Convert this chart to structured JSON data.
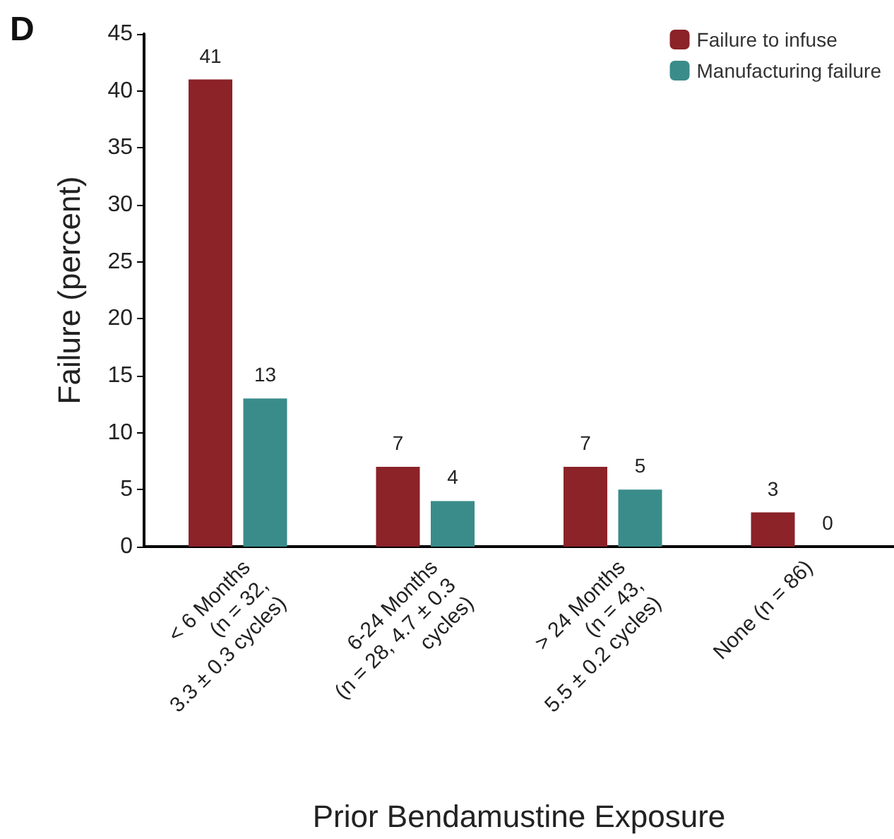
{
  "chart_data": {
    "type": "bar",
    "title": "D",
    "xlabel": "Prior Bendamustine Exposure",
    "ylabel": "Failure (percent)",
    "categories": [
      "< 6 Months\n(n = 32,\n3.3 ± 0.3 cycles)",
      "6-24 Months\n(n = 28, 4.7 ± 0.3\ncycles)",
      "> 24 Months\n(n = 43,\n5.5 ± 0.2 cycles)",
      "None (n = 86)"
    ],
    "series": [
      {
        "name": "Failure to infuse",
        "color": "#8b2329",
        "values": [
          41,
          7,
          7,
          3
        ]
      },
      {
        "name": "Manufacturing failure",
        "color": "#3a8c8a",
        "values": [
          13,
          4,
          5,
          0
        ]
      }
    ],
    "ylim": [
      0,
      45
    ],
    "yticks": [
      0,
      5,
      10,
      15,
      20,
      25,
      30,
      35,
      40,
      45
    ],
    "grid": false,
    "legend": "top right",
    "data_labels": true
  }
}
